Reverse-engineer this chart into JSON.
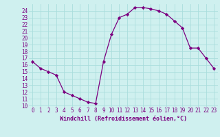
{
  "x": [
    0,
    1,
    2,
    3,
    4,
    5,
    6,
    7,
    8,
    9,
    10,
    11,
    12,
    13,
    14,
    15,
    16,
    17,
    18,
    19,
    20,
    21,
    22,
    23
  ],
  "y": [
    16.5,
    15.5,
    15.0,
    14.5,
    12.0,
    11.5,
    11.0,
    10.5,
    10.3,
    16.5,
    20.5,
    23.0,
    23.5,
    24.5,
    24.5,
    24.3,
    24.0,
    23.5,
    22.5,
    21.5,
    18.5,
    18.5,
    17.0,
    15.5
  ],
  "xlim": [
    -0.5,
    23.5
  ],
  "ylim": [
    9.8,
    25.0
  ],
  "yticks": [
    10,
    11,
    12,
    13,
    14,
    15,
    16,
    17,
    18,
    19,
    20,
    21,
    22,
    23,
    24
  ],
  "xticks": [
    0,
    1,
    2,
    3,
    4,
    5,
    6,
    7,
    8,
    9,
    10,
    11,
    12,
    13,
    14,
    15,
    16,
    17,
    18,
    19,
    20,
    21,
    22,
    23
  ],
  "xlabel": "Windchill (Refroidissement éolien,°C)",
  "line_color": "#7b0080",
  "marker": "D",
  "marker_size": 2.2,
  "bg_color": "#cff0ef",
  "grid_color": "#aadddd",
  "tick_color": "#7b0080",
  "label_color": "#7b0080",
  "tick_fontsize": 5.5,
  "label_fontsize": 6.0
}
